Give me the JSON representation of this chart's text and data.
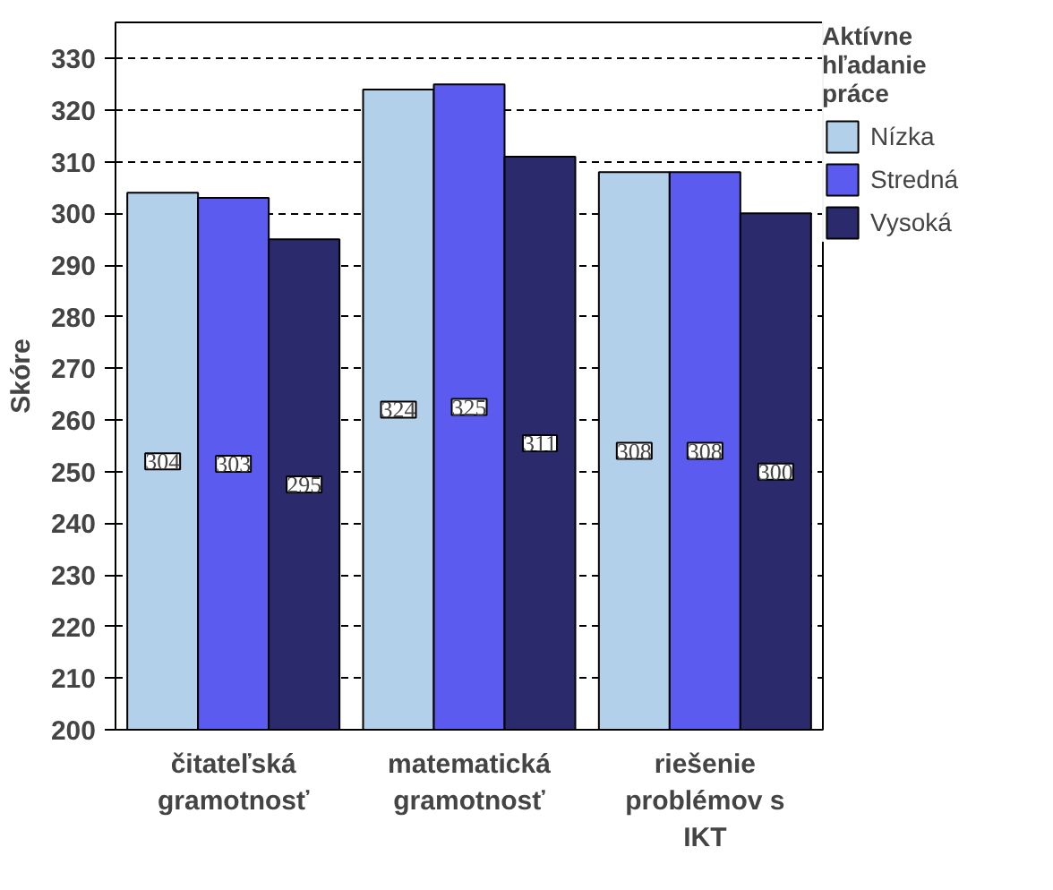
{
  "chart_data": {
    "type": "bar",
    "ylabel": "Skóre",
    "legend_title": "Aktívne hľadanie práce",
    "categories": [
      "čitateľská gramotnosť",
      "matematická gramotnosť",
      "riešenie problémov s IKT"
    ],
    "series": [
      {
        "name": "Nízka",
        "color": "#b3d0ea",
        "values": [
          304,
          324,
          308
        ]
      },
      {
        "name": "Stredná",
        "color": "#5b5bf0",
        "values": [
          303,
          325,
          308
        ]
      },
      {
        "name": "Vysoká",
        "color": "#2a2a6c",
        "values": [
          295,
          311,
          300
        ]
      }
    ],
    "ylim": [
      200,
      337
    ],
    "yticks": [
      200,
      210,
      220,
      230,
      240,
      250,
      260,
      270,
      280,
      290,
      300,
      310,
      320,
      330
    ],
    "grid": "y",
    "legend": "right",
    "data_labels": true
  }
}
